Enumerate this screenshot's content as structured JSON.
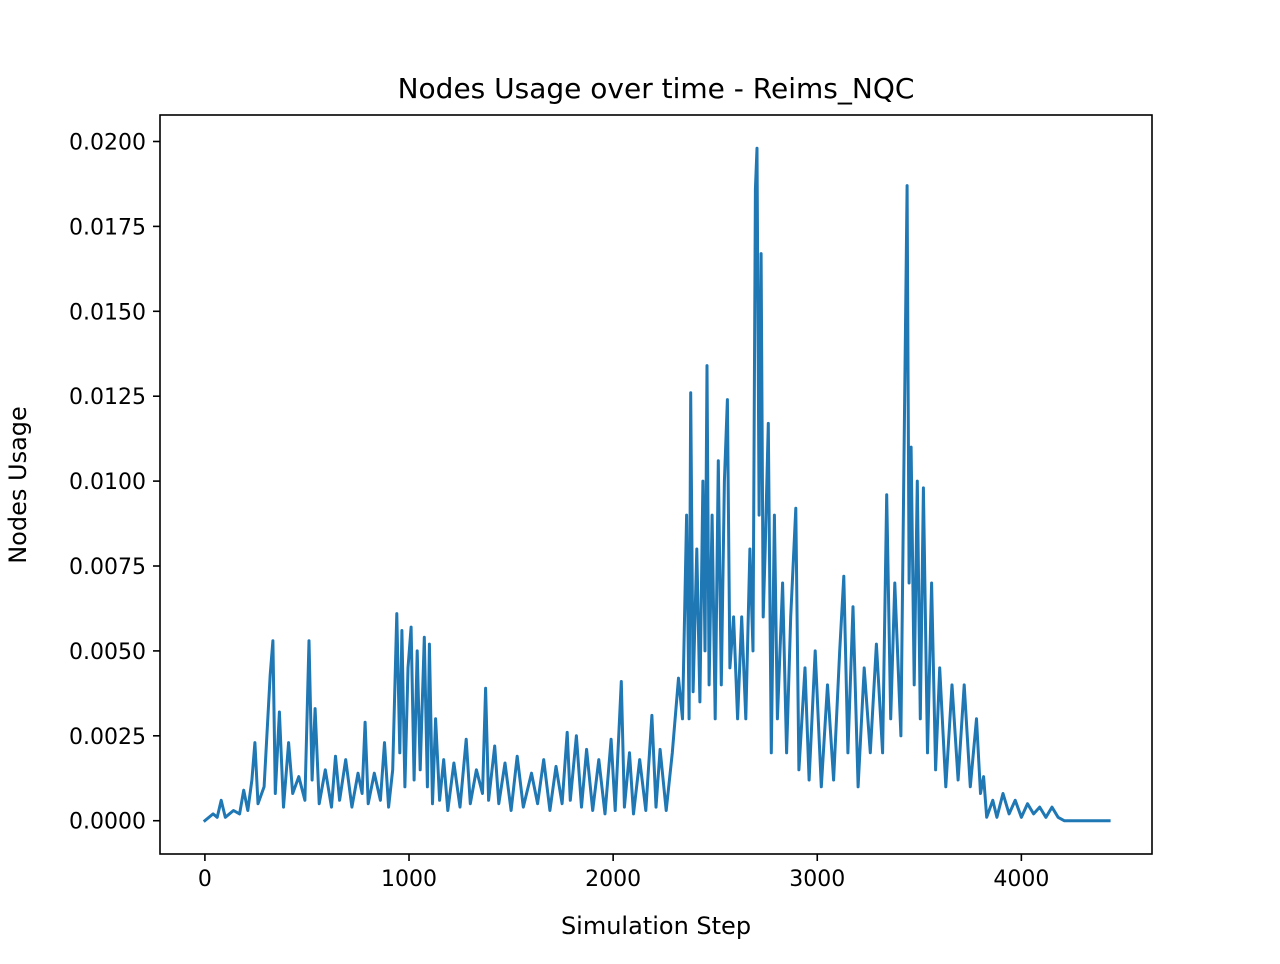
{
  "chart_data": {
    "type": "line",
    "title": "Nodes Usage over time - Reims_NQC",
    "xlabel": "Simulation Step",
    "ylabel": "Nodes Usage",
    "xlim": [
      -220,
      4640
    ],
    "ylim": [
      -0.00098,
      0.02078
    ],
    "x_ticks": [
      0,
      1000,
      2000,
      3000,
      4000
    ],
    "x_tick_labels": [
      "0",
      "1000",
      "2000",
      "3000",
      "4000"
    ],
    "y_ticks": [
      0,
      0.0025,
      0.005,
      0.0075,
      0.01,
      0.0125,
      0.015,
      0.0175,
      0.02
    ],
    "y_tick_labels": [
      "0.0000",
      "0.0025",
      "0.0050",
      "0.0075",
      "0.0100",
      "0.0125",
      "0.0150",
      "0.0175",
      "0.0200"
    ],
    "grid": false,
    "series": [
      {
        "color": "#1f77b4",
        "points": [
          [
            0,
            0
          ],
          [
            40,
            0.0002
          ],
          [
            60,
            0.0001
          ],
          [
            80,
            0.0006
          ],
          [
            100,
            0.0001
          ],
          [
            140,
            0.0003
          ],
          [
            170,
            0.0002
          ],
          [
            190,
            0.0009
          ],
          [
            210,
            0.0003
          ],
          [
            230,
            0.0012
          ],
          [
            245,
            0.0023
          ],
          [
            260,
            0.0005
          ],
          [
            290,
            0.001
          ],
          [
            320,
            0.0043
          ],
          [
            333,
            0.0053
          ],
          [
            345,
            0.0008
          ],
          [
            365,
            0.0032
          ],
          [
            385,
            0.0004
          ],
          [
            410,
            0.0023
          ],
          [
            430,
            0.0008
          ],
          [
            460,
            0.0013
          ],
          [
            490,
            0.0006
          ],
          [
            510,
            0.0053
          ],
          [
            525,
            0.0012
          ],
          [
            540,
            0.0033
          ],
          [
            560,
            0.0005
          ],
          [
            590,
            0.0015
          ],
          [
            620,
            0.0004
          ],
          [
            640,
            0.0019
          ],
          [
            660,
            0.0006
          ],
          [
            690,
            0.0018
          ],
          [
            720,
            0.0004
          ],
          [
            750,
            0.0014
          ],
          [
            770,
            0.0008
          ],
          [
            785,
            0.0029
          ],
          [
            800,
            0.0005
          ],
          [
            830,
            0.0014
          ],
          [
            860,
            0.0006
          ],
          [
            880,
            0.0023
          ],
          [
            900,
            0.0004
          ],
          [
            920,
            0.0015
          ],
          [
            940,
            0.0061
          ],
          [
            955,
            0.002
          ],
          [
            965,
            0.0056
          ],
          [
            980,
            0.001
          ],
          [
            995,
            0.0045
          ],
          [
            1010,
            0.0057
          ],
          [
            1025,
            0.0012
          ],
          [
            1040,
            0.005
          ],
          [
            1055,
            0.0015
          ],
          [
            1075,
            0.0054
          ],
          [
            1090,
            0.001
          ],
          [
            1100,
            0.0052
          ],
          [
            1115,
            0.0005
          ],
          [
            1130,
            0.003
          ],
          [
            1150,
            0.0006
          ],
          [
            1170,
            0.0018
          ],
          [
            1190,
            0.0003
          ],
          [
            1220,
            0.0017
          ],
          [
            1250,
            0.0004
          ],
          [
            1280,
            0.0024
          ],
          [
            1300,
            0.0005
          ],
          [
            1330,
            0.0015
          ],
          [
            1360,
            0.0008
          ],
          [
            1375,
            0.0039
          ],
          [
            1390,
            0.0006
          ],
          [
            1420,
            0.0022
          ],
          [
            1440,
            0.0005
          ],
          [
            1470,
            0.0017
          ],
          [
            1500,
            0.0003
          ],
          [
            1530,
            0.0019
          ],
          [
            1560,
            0.0004
          ],
          [
            1600,
            0.0014
          ],
          [
            1630,
            0.0005
          ],
          [
            1660,
            0.0018
          ],
          [
            1690,
            0.0003
          ],
          [
            1720,
            0.0016
          ],
          [
            1750,
            0.0005
          ],
          [
            1775,
            0.0026
          ],
          [
            1790,
            0.0006
          ],
          [
            1820,
            0.0025
          ],
          [
            1845,
            0.0004
          ],
          [
            1870,
            0.0021
          ],
          [
            1900,
            0.0003
          ],
          [
            1930,
            0.0018
          ],
          [
            1960,
            0.0002
          ],
          [
            1990,
            0.0024
          ],
          [
            2010,
            0.0003
          ],
          [
            2040,
            0.0041
          ],
          [
            2055,
            0.0004
          ],
          [
            2080,
            0.002
          ],
          [
            2100,
            0.0002
          ],
          [
            2130,
            0.0018
          ],
          [
            2160,
            0.0003
          ],
          [
            2190,
            0.0031
          ],
          [
            2210,
            0.0004
          ],
          [
            2230,
            0.0021
          ],
          [
            2260,
            0.0003
          ],
          [
            2290,
            0.002
          ],
          [
            2320,
            0.0042
          ],
          [
            2340,
            0.003
          ],
          [
            2360,
            0.009
          ],
          [
            2372,
            0.003
          ],
          [
            2380,
            0.0126
          ],
          [
            2392,
            0.0038
          ],
          [
            2410,
            0.008
          ],
          [
            2425,
            0.0035
          ],
          [
            2440,
            0.01
          ],
          [
            2450,
            0.005
          ],
          [
            2460,
            0.0134
          ],
          [
            2470,
            0.004
          ],
          [
            2485,
            0.009
          ],
          [
            2500,
            0.003
          ],
          [
            2515,
            0.0106
          ],
          [
            2530,
            0.004
          ],
          [
            2545,
            0.01
          ],
          [
            2560,
            0.0124
          ],
          [
            2572,
            0.0045
          ],
          [
            2590,
            0.006
          ],
          [
            2610,
            0.003
          ],
          [
            2630,
            0.006
          ],
          [
            2650,
            0.003
          ],
          [
            2670,
            0.008
          ],
          [
            2685,
            0.005
          ],
          [
            2697,
            0.0186
          ],
          [
            2705,
            0.0198
          ],
          [
            2715,
            0.009
          ],
          [
            2725,
            0.0167
          ],
          [
            2735,
            0.006
          ],
          [
            2745,
            0.008
          ],
          [
            2760,
            0.0117
          ],
          [
            2775,
            0.002
          ],
          [
            2790,
            0.009
          ],
          [
            2805,
            0.003
          ],
          [
            2830,
            0.007
          ],
          [
            2850,
            0.002
          ],
          [
            2870,
            0.006
          ],
          [
            2895,
            0.0092
          ],
          [
            2910,
            0.0015
          ],
          [
            2940,
            0.0045
          ],
          [
            2960,
            0.0012
          ],
          [
            2990,
            0.005
          ],
          [
            3020,
            0.001
          ],
          [
            3050,
            0.004
          ],
          [
            3080,
            0.0012
          ],
          [
            3110,
            0.005
          ],
          [
            3130,
            0.0072
          ],
          [
            3150,
            0.002
          ],
          [
            3175,
            0.0063
          ],
          [
            3200,
            0.001
          ],
          [
            3230,
            0.0045
          ],
          [
            3260,
            0.002
          ],
          [
            3290,
            0.0052
          ],
          [
            3320,
            0.002
          ],
          [
            3340,
            0.0096
          ],
          [
            3360,
            0.003
          ],
          [
            3380,
            0.007
          ],
          [
            3410,
            0.0025
          ],
          [
            3425,
            0.0107
          ],
          [
            3440,
            0.0187
          ],
          [
            3450,
            0.007
          ],
          [
            3460,
            0.011
          ],
          [
            3475,
            0.004
          ],
          [
            3490,
            0.01
          ],
          [
            3505,
            0.003
          ],
          [
            3520,
            0.0098
          ],
          [
            3540,
            0.002
          ],
          [
            3560,
            0.007
          ],
          [
            3580,
            0.0015
          ],
          [
            3600,
            0.0045
          ],
          [
            3630,
            0.001
          ],
          [
            3660,
            0.004
          ],
          [
            3690,
            0.0012
          ],
          [
            3720,
            0.004
          ],
          [
            3750,
            0.001
          ],
          [
            3780,
            0.003
          ],
          [
            3800,
            0.0008
          ],
          [
            3815,
            0.0013
          ],
          [
            3830,
            0.0001
          ],
          [
            3860,
            0.0006
          ],
          [
            3880,
            0.0001
          ],
          [
            3910,
            0.0008
          ],
          [
            3940,
            0.0002
          ],
          [
            3970,
            0.0006
          ],
          [
            4000,
            0.0001
          ],
          [
            4030,
            0.0005
          ],
          [
            4060,
            0.0002
          ],
          [
            4090,
            0.0004
          ],
          [
            4120,
            0.0001
          ],
          [
            4150,
            0.0004
          ],
          [
            4180,
            0.0001
          ],
          [
            4210,
            0
          ],
          [
            4430,
            0
          ]
        ]
      }
    ]
  }
}
